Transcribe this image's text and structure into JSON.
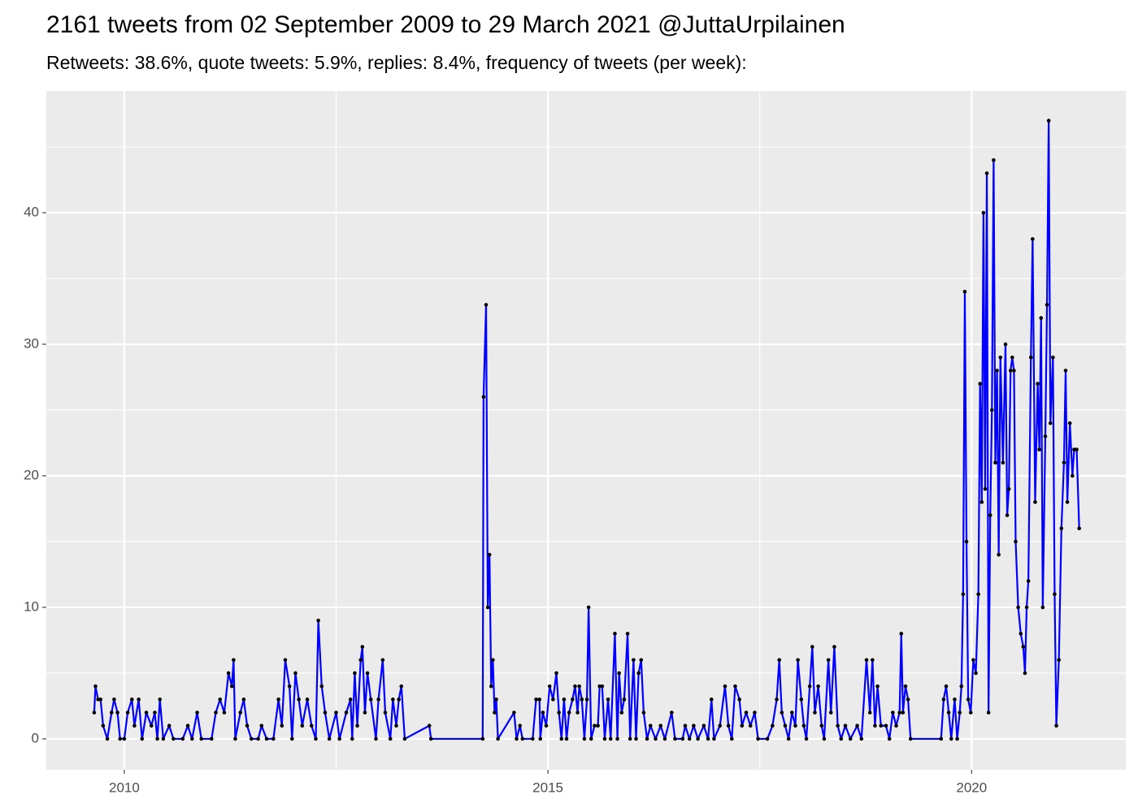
{
  "chart_data": {
    "type": "line",
    "title": "2161 tweets from 02 September 2009 to 29 March 2021 @JuttaUrpilainen",
    "subtitle": "Retweets: 38.6%, quote tweets: 5.9%, replies: 8.4%, frequency of tweets (per week):",
    "xlim": [
      2009.08,
      2021.82
    ],
    "xticks": [
      2010,
      2015,
      2020
    ],
    "ylim": [
      -2.35,
      49.26
    ],
    "yticks": [
      0,
      10,
      20,
      30,
      40
    ],
    "grid": true,
    "color": "#0000ff",
    "point_color": "#000000",
    "x": [
      2009.645,
      2009.66,
      2009.69,
      2009.72,
      2009.75,
      2009.8,
      2009.85,
      2009.88,
      2009.92,
      2009.95,
      2010.0,
      2010.04,
      2010.09,
      2010.12,
      2010.17,
      2010.21,
      2010.26,
      2010.32,
      2010.36,
      2010.39,
      2010.42,
      2010.46,
      2010.53,
      2010.58,
      2010.69,
      2010.75,
      2010.8,
      2010.86,
      2010.91,
      2011.03,
      2011.08,
      2011.13,
      2011.18,
      2011.23,
      2011.27,
      2011.29,
      2011.31,
      2011.37,
      2011.41,
      2011.45,
      2011.5,
      2011.58,
      2011.62,
      2011.68,
      2011.76,
      2011.82,
      2011.86,
      2011.9,
      2011.95,
      2011.98,
      2012.02,
      2012.06,
      2012.1,
      2012.16,
      2012.21,
      2012.26,
      2012.29,
      2012.33,
      2012.37,
      2012.42,
      2012.5,
      2012.54,
      2012.62,
      2012.67,
      2012.69,
      2012.72,
      2012.75,
      2012.79,
      2012.81,
      2012.84,
      2012.87,
      2012.91,
      2012.97,
      2013.0,
      2013.05,
      2013.08,
      2013.14,
      2013.17,
      2013.21,
      2013.24,
      2013.27,
      2013.31,
      2013.6,
      2013.62,
      2014.23,
      2014.24,
      2014.27,
      2014.29,
      2014.31,
      2014.33,
      2014.35,
      2014.37,
      2014.39,
      2014.41,
      2014.6,
      2014.63,
      2014.67,
      2014.7,
      2014.82,
      2014.86,
      2014.9,
      2014.91,
      2014.94,
      2014.98,
      2015.02,
      2015.06,
      2015.1,
      2015.13,
      2015.16,
      2015.19,
      2015.22,
      2015.25,
      2015.29,
      2015.32,
      2015.35,
      2015.37,
      2015.4,
      2015.43,
      2015.46,
      2015.48,
      2015.51,
      2015.55,
      2015.59,
      2015.61,
      2015.64,
      2015.67,
      2015.71,
      2015.74,
      2015.79,
      2015.82,
      2015.84,
      2015.87,
      2015.9,
      2015.94,
      2015.97,
      2016.01,
      2016.04,
      2016.07,
      2016.1,
      2016.13,
      2016.17,
      2016.21,
      2016.27,
      2016.33,
      2016.38,
      2016.46,
      2016.5,
      2016.59,
      2016.62,
      2016.67,
      2016.72,
      2016.77,
      2016.84,
      2016.89,
      2016.93,
      2016.96,
      2017.03,
      2017.09,
      2017.13,
      2017.17,
      2017.21,
      2017.26,
      2017.29,
      2017.34,
      2017.39,
      2017.44,
      2017.48,
      2017.59,
      2017.65,
      2017.7,
      2017.73,
      2017.76,
      2017.8,
      2017.84,
      2017.88,
      2017.92,
      2017.95,
      2017.99,
      2018.02,
      2018.05,
      2018.09,
      2018.12,
      2018.15,
      2018.19,
      2018.23,
      2018.26,
      2018.31,
      2018.34,
      2018.38,
      2018.42,
      2018.46,
      2018.51,
      2018.57,
      2018.65,
      2018.7,
      2018.76,
      2018.8,
      2018.83,
      2018.86,
      2018.89,
      2018.93,
      2018.99,
      2019.03,
      2019.07,
      2019.11,
      2019.15,
      2019.17,
      2019.19,
      2019.22,
      2019.25,
      2019.28,
      2019.64,
      2019.67,
      2019.7,
      2019.73,
      2019.76,
      2019.8,
      2019.83,
      2019.86,
      2019.88,
      2019.9,
      2019.92,
      2019.94,
      2019.96,
      2019.99,
      2020.02,
      2020.05,
      2020.08,
      2020.1,
      2020.12,
      2020.14,
      2020.16,
      2020.18,
      2020.2,
      2020.22,
      2020.24,
      2020.26,
      2020.28,
      2020.3,
      2020.32,
      2020.34,
      2020.37,
      2020.4,
      2020.42,
      2020.44,
      2020.46,
      2020.48,
      2020.5,
      2020.52,
      2020.55,
      2020.58,
      2020.61,
      2020.63,
      2020.65,
      2020.67,
      2020.7,
      2020.72,
      2020.75,
      2020.78,
      2020.8,
      2020.82,
      2020.84,
      2020.87,
      2020.89,
      2020.91,
      2020.93,
      2020.96,
      2020.98,
      2021.0,
      2021.03,
      2021.06,
      2021.09,
      2021.11,
      2021.13,
      2021.16,
      2021.19,
      2021.21,
      2021.24,
      2021.27
    ],
    "values": [
      2,
      4,
      3,
      3,
      1,
      0,
      2,
      3,
      2,
      0,
      0,
      2,
      3,
      1,
      3,
      0,
      2,
      1,
      2,
      0,
      3,
      0,
      1,
      0,
      0,
      1,
      0,
      2,
      0,
      0,
      2,
      3,
      2,
      5,
      4,
      6,
      0,
      2,
      3,
      1,
      0,
      0,
      1,
      0,
      0,
      3,
      1,
      6,
      4,
      0,
      5,
      3,
      1,
      3,
      1,
      0,
      9,
      4,
      2,
      0,
      2,
      0,
      2,
      3,
      0,
      5,
      1,
      6,
      7,
      2,
      5,
      3,
      0,
      3,
      6,
      2,
      0,
      3,
      1,
      3,
      4,
      0,
      1,
      0,
      0,
      26,
      33,
      10,
      14,
      4,
      6,
      2,
      3,
      0,
      2,
      0,
      1,
      0,
      0,
      3,
      3,
      0,
      2,
      1,
      4,
      3,
      5,
      2,
      0,
      3,
      0,
      2,
      3,
      4,
      2,
      4,
      3,
      0,
      3,
      10,
      0,
      1,
      1,
      4,
      4,
      0,
      3,
      0,
      8,
      0,
      5,
      2,
      3,
      8,
      0,
      6,
      0,
      5,
      6,
      2,
      0,
      1,
      0,
      1,
      0,
      2,
      0,
      0,
      1,
      0,
      1,
      0,
      1,
      0,
      3,
      0,
      1,
      4,
      1,
      0,
      4,
      3,
      1,
      2,
      1,
      2,
      0,
      0,
      1,
      3,
      6,
      2,
      1,
      0,
      2,
      1,
      6,
      3,
      1,
      0,
      4,
      7,
      2,
      4,
      1,
      0,
      6,
      2,
      7,
      1,
      0,
      1,
      0,
      1,
      0,
      6,
      2,
      6,
      1,
      4,
      1,
      1,
      0,
      2,
      1,
      2,
      8,
      2,
      4,
      3,
      0,
      0,
      3,
      4,
      2,
      0,
      3,
      0,
      2,
      4,
      11,
      34,
      15,
      3,
      2,
      6,
      5,
      11,
      27,
      18,
      40,
      19,
      43,
      2,
      17,
      25,
      44,
      21,
      28,
      14,
      29,
      21,
      30,
      17,
      19,
      28,
      29,
      28,
      15,
      10,
      8,
      7,
      5,
      10,
      12,
      29,
      38,
      18,
      27,
      22,
      32,
      10,
      23,
      33,
      47,
      24,
      29,
      11,
      1,
      6,
      16,
      21,
      28,
      18,
      24,
      20,
      22,
      22,
      16
    ]
  }
}
